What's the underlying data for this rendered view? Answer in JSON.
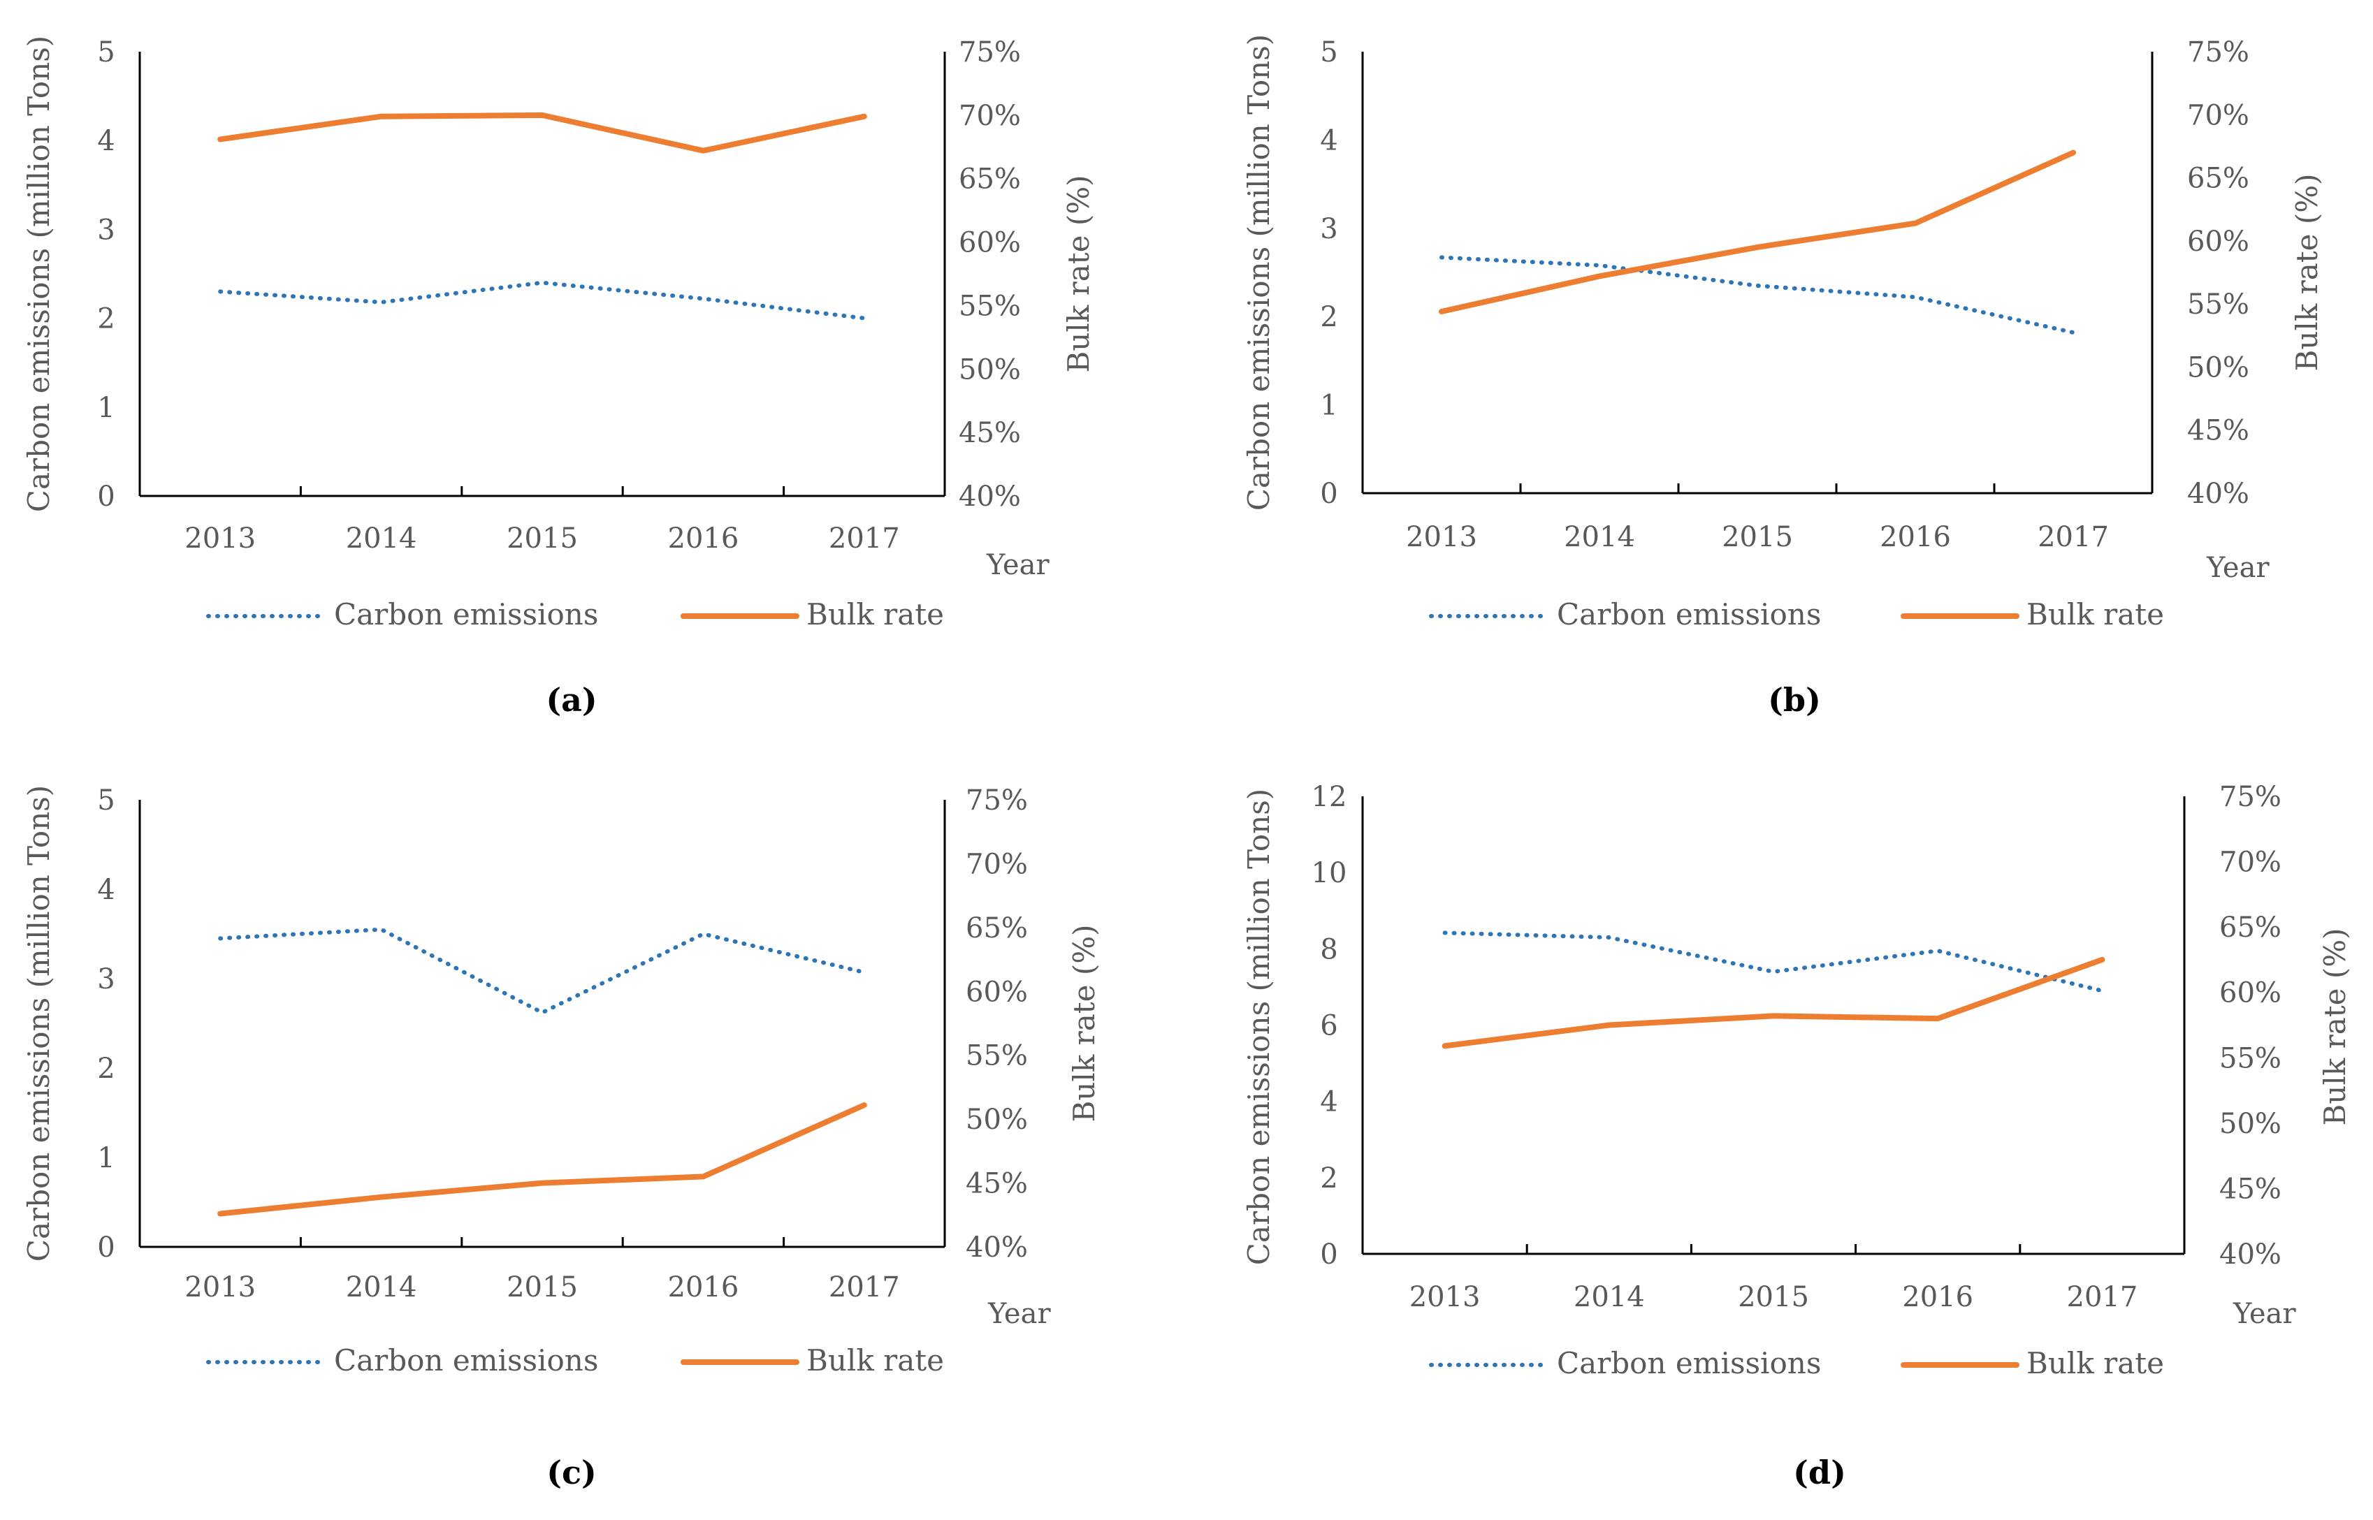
{
  "colors": {
    "carbon": "#2E75B6",
    "bulk": "#ED7D31",
    "axis": "#000000",
    "text": "#595959"
  },
  "chart_data": [
    {
      "panel": "(a)",
      "type": "line",
      "categories": [
        "2013",
        "2014",
        "2015",
        "2016",
        "2017"
      ],
      "xlabel": "Year",
      "ylabel": "Carbon emissions (million Tons)",
      "y2label": "Bulk rate (%)",
      "ylim": [
        0,
        5
      ],
      "yticks": [
        "0",
        "1",
        "2",
        "3",
        "4",
        "5"
      ],
      "y2lim": [
        40,
        75
      ],
      "y2ticks": [
        "40%",
        "45%",
        "50%",
        "55%",
        "60%",
        "65%",
        "70%",
        "75%"
      ],
      "series": [
        {
          "name": "Carbon emissions",
          "axis": "left",
          "style": "dotted",
          "values": [
            2.3,
            2.18,
            2.4,
            2.22,
            2.0
          ]
        },
        {
          "name": "Bulk rate",
          "axis": "right",
          "style": "solid",
          "values": [
            68.1,
            69.9,
            70.0,
            67.2,
            69.9
          ]
        }
      ]
    },
    {
      "panel": "(b)",
      "type": "line",
      "categories": [
        "2013",
        "2014",
        "2015",
        "2016",
        "2017"
      ],
      "xlabel": "Year",
      "ylabel": "Carbon emissions (million Tons)",
      "y2label": "Bulk rate (%)",
      "ylim": [
        0,
        5
      ],
      "yticks": [
        "0",
        "1",
        "2",
        "3",
        "4",
        "5"
      ],
      "y2lim": [
        40,
        75
      ],
      "y2ticks": [
        "40%",
        "45%",
        "50%",
        "55%",
        "60%",
        "65%",
        "70%",
        "75%"
      ],
      "series": [
        {
          "name": "Carbon emissions",
          "axis": "left",
          "style": "dotted",
          "values": [
            2.67,
            2.58,
            2.35,
            2.22,
            1.82
          ]
        },
        {
          "name": "Bulk rate",
          "axis": "right",
          "style": "solid",
          "values": [
            54.4,
            57.2,
            59.5,
            61.4,
            67.0
          ]
        }
      ]
    },
    {
      "panel": "(c)",
      "type": "line",
      "categories": [
        "2013",
        "2014",
        "2015",
        "2016",
        "2017"
      ],
      "xlabel": "Year",
      "ylabel": "Carbon emissions (million Tons)",
      "y2label": "Bulk rate (%)",
      "ylim": [
        0,
        5
      ],
      "yticks": [
        "0",
        "1",
        "2",
        "3",
        "4",
        "5"
      ],
      "y2lim": [
        40,
        75
      ],
      "y2ticks": [
        "40%",
        "45%",
        "50%",
        "55%",
        "60%",
        "65%",
        "70%",
        "75%"
      ],
      "series": [
        {
          "name": "Carbon emissions",
          "axis": "left",
          "style": "dotted",
          "values": [
            3.45,
            3.55,
            2.62,
            3.5,
            3.07
          ]
        },
        {
          "name": "Bulk rate",
          "axis": "right",
          "style": "solid",
          "values": [
            42.6,
            43.9,
            45.0,
            45.5,
            51.1
          ]
        }
      ]
    },
    {
      "panel": "(d)",
      "type": "line",
      "categories": [
        "2013",
        "2014",
        "2015",
        "2016",
        "2017"
      ],
      "xlabel": "Year",
      "ylabel": "Carbon emissions (million Tons)",
      "y2label": "Bulk rate (%)",
      "ylim": [
        0,
        12
      ],
      "yticks": [
        "0",
        "2",
        "4",
        "6",
        "8",
        "10",
        "12"
      ],
      "y2lim": [
        40,
        75
      ],
      "y2ticks": [
        "40%",
        "45%",
        "50%",
        "55%",
        "60%",
        "65%",
        "70%",
        "75%"
      ],
      "series": [
        {
          "name": "Carbon emissions",
          "axis": "left",
          "style": "dotted",
          "values": [
            8.42,
            8.3,
            7.4,
            7.95,
            6.9
          ]
        },
        {
          "name": "Bulk rate",
          "axis": "right",
          "style": "solid",
          "values": [
            55.9,
            57.5,
            58.2,
            58.0,
            62.5
          ]
        }
      ]
    }
  ]
}
